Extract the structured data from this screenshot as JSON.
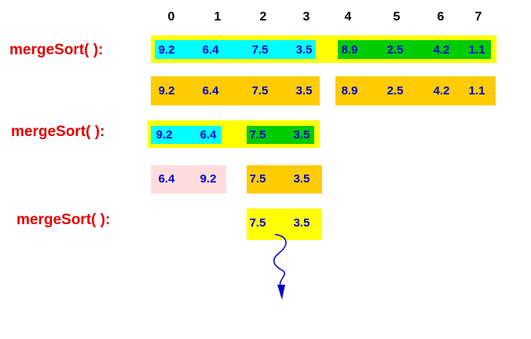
{
  "indices": [
    0,
    1,
    2,
    3,
    4,
    5,
    6,
    7
  ],
  "calls": [
    "mergeSort( ):",
    "mergeSort( ):",
    "mergeSort( ):"
  ],
  "rows": [
    [
      [
        9.2,
        6.4,
        7.5,
        3.5
      ],
      [
        8.9,
        2.5,
        4.2,
        1.1
      ]
    ],
    [
      [
        9.2,
        6.4,
        7.5,
        3.5
      ],
      [
        8.9,
        2.5,
        4.2,
        1.1
      ]
    ],
    [
      [
        9.2,
        6.4
      ],
      [
        7.5,
        3.5
      ]
    ],
    [
      [
        6.4,
        9.2
      ],
      [
        7.5,
        3.5
      ]
    ],
    [
      [
        7.5,
        3.5
      ]
    ]
  ]
}
